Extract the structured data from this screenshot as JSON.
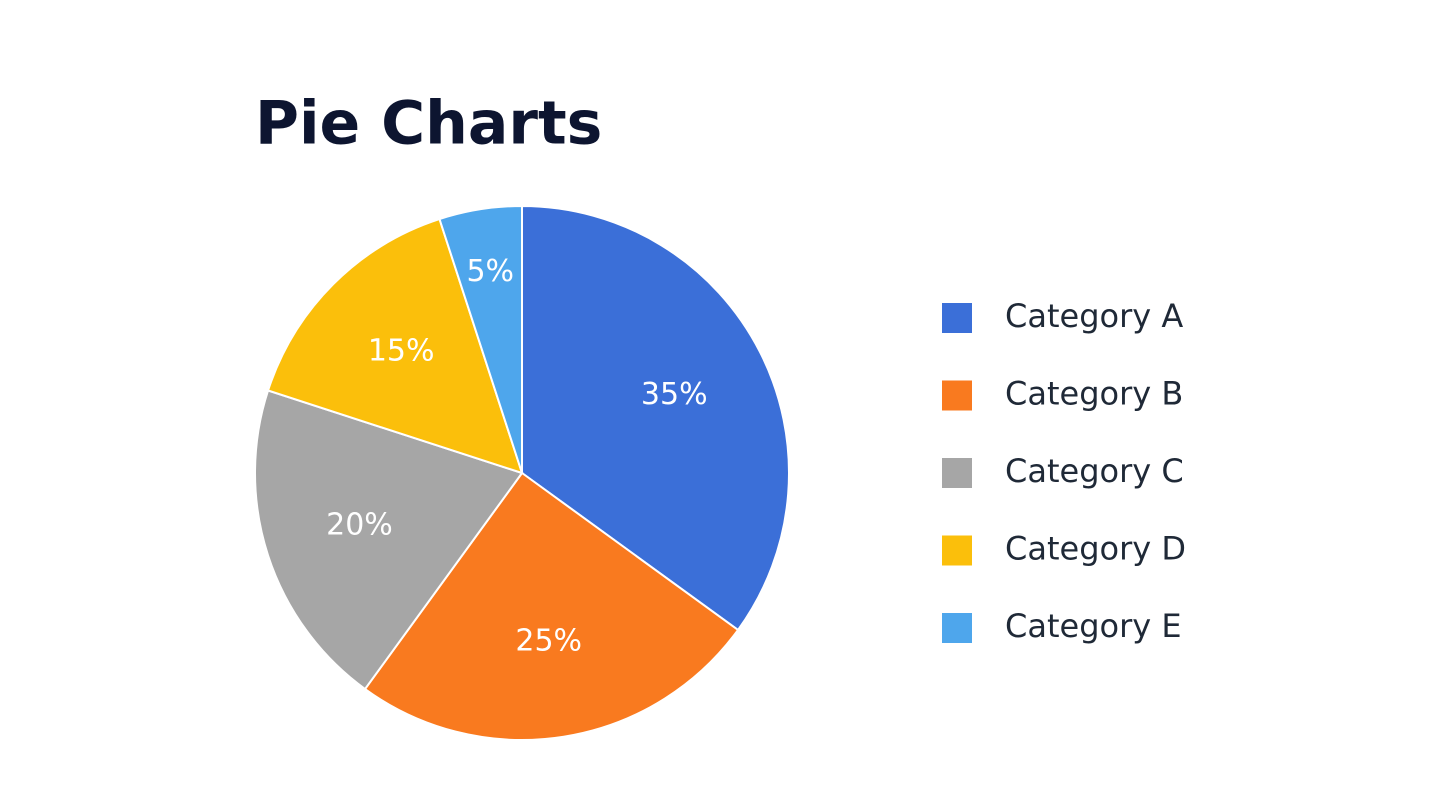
{
  "chart_data": {
    "type": "pie",
    "title": "Pie Charts",
    "categories": [
      "Category A",
      "Category B",
      "Category C",
      "Category D",
      "Category E"
    ],
    "values": [
      35,
      25,
      20,
      15,
      5
    ],
    "value_labels": [
      "35%",
      "25%",
      "20%",
      "15%",
      "5%"
    ],
    "colors": [
      "#3b6fd8",
      "#f97a1f",
      "#a6a6a6",
      "#fbbf0b",
      "#4ea6ec"
    ],
    "legend": "right"
  }
}
